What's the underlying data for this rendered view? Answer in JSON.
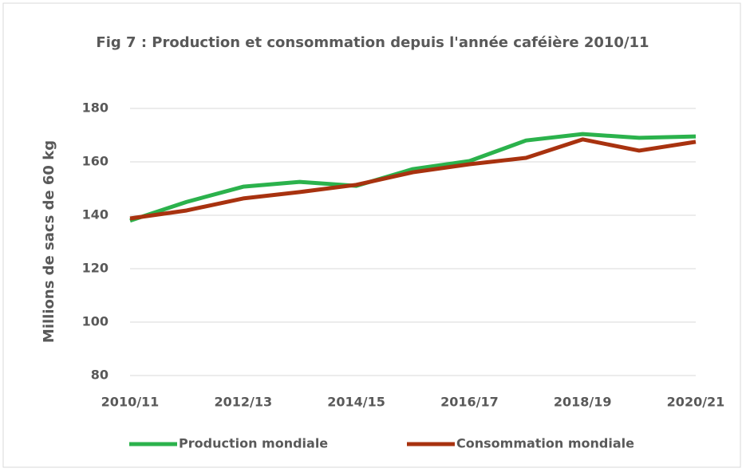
{
  "chart_data": {
    "type": "line",
    "title": "Fig 7 : Production et consommation depuis l'année caféière 2010/11",
    "y_label": "Millions de sacs de 60 kg",
    "categories": [
      "2010/11",
      null,
      "2012/13",
      null,
      "2014/15",
      null,
      "2016/17",
      null,
      "2018/19",
      null,
      "2020/21"
    ],
    "series": [
      {
        "name": "Production mondiale",
        "color": "#2bb24c",
        "values": [
          138,
          145,
          150.7,
          152.5,
          151,
          157.3,
          160.3,
          168,
          170.4,
          169,
          169.5
        ]
      },
      {
        "name": "Consommation mondiale",
        "color": "#a8320f",
        "values": [
          138.8,
          141.8,
          146.3,
          148.7,
          151.4,
          156.1,
          159.1,
          161.5,
          168.4,
          164.2,
          167.5
        ]
      }
    ],
    "ylim": [
      80,
      180
    ],
    "yticks": [
      80,
      100,
      120,
      140,
      160,
      180
    ],
    "grid": true,
    "legend": "bottom"
  }
}
